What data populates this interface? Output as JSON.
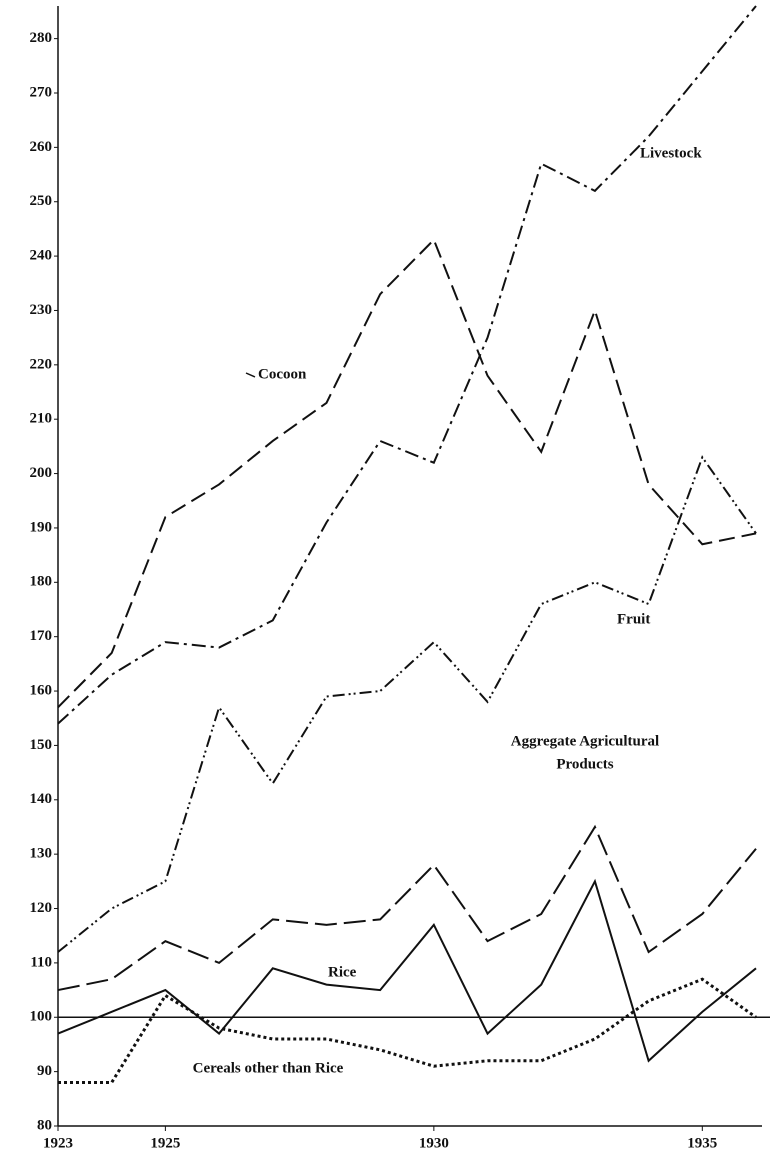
{
  "chart_data": {
    "type": "line",
    "x": [
      1923,
      1924,
      1925,
      1926,
      1927,
      1928,
      1929,
      1930,
      1931,
      1932,
      1933,
      1934,
      1935,
      1936
    ],
    "xlim": [
      1923,
      1936
    ],
    "xticks": [
      1923,
      1925,
      1930,
      1935
    ],
    "ylim": [
      80,
      286
    ],
    "yticks": [
      80,
      90,
      100,
      110,
      120,
      130,
      140,
      150,
      160,
      170,
      180,
      190,
      200,
      210,
      220,
      230,
      240,
      250,
      260,
      270,
      280
    ],
    "hline": 100,
    "series": [
      {
        "name": "Livestock",
        "color": "#111111",
        "values": [
          154,
          163,
          169,
          168,
          173,
          191,
          206,
          202,
          225,
          257,
          252,
          262,
          274,
          286
        ]
      },
      {
        "name": "Cocoon",
        "color": "#111111",
        "values": [
          157,
          167,
          192,
          198,
          206,
          213,
          233,
          243,
          218,
          204,
          230,
          198,
          187,
          189
        ]
      },
      {
        "name": "Fruit",
        "color": "#111111",
        "values": [
          112,
          120,
          125,
          157,
          143,
          159,
          160,
          169,
          158,
          176,
          180,
          176,
          203,
          189
        ]
      },
      {
        "name": "Aggregate Agricultural Products",
        "color": "#111111",
        "values": [
          105,
          107,
          114,
          110,
          118,
          117,
          118,
          128,
          114,
          119,
          135,
          112,
          119,
          131
        ]
      },
      {
        "name": "Rice",
        "color": "#111111",
        "values": [
          97,
          101,
          105,
          97,
          109,
          106,
          105,
          117,
          97,
          106,
          125,
          92,
          101,
          109
        ]
      },
      {
        "name": "Cereals other than Rice",
        "color": "#111111",
        "values": [
          88,
          88,
          104,
          98,
          96,
          96,
          94,
          91,
          92,
          92,
          96,
          103,
          107,
          100
        ]
      }
    ],
    "annotations": [
      "Livestock",
      "Cocoon",
      "Fruit",
      "Aggregate Agricultural",
      "Products",
      "Rice",
      "Cereals other than Rice"
    ]
  }
}
